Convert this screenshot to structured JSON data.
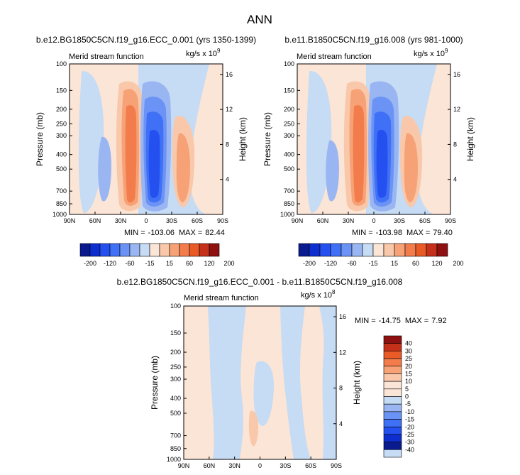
{
  "page_title": "ANN",
  "colors": {
    "neg": [
      "#0a1a8f",
      "#0d2fd0",
      "#2450f0",
      "#3f70f6",
      "#6a93f5",
      "#9ab6f2",
      "#c6dbf4"
    ],
    "pos": [
      "#fbe5d6",
      "#f9c8aa",
      "#f6a276",
      "#f27c4c",
      "#e85a26",
      "#c4301a",
      "#8f1010"
    ]
  },
  "chart_data": [
    {
      "type": "contour",
      "title": "b.e12.BG1850C5CN.f19_g16.ECC_0.001 (yrs 1350-1399)",
      "subtitle": "Merid stream function",
      "units_base": "kg/s x 10",
      "units_exp": "9",
      "ylabel": "Pressure (mb)",
      "y2label": "Height (km)",
      "x_ticks": [
        "90N",
        "60N",
        "30N",
        "0",
        "30S",
        "60S",
        "90S"
      ],
      "y_ticks": [
        100,
        150,
        200,
        250,
        300,
        400,
        500,
        700,
        850,
        1000
      ],
      "y2_ticks": [
        16,
        12,
        8,
        4
      ],
      "stats": {
        "min_label": "MIN =",
        "min": "-103.06",
        "max_label": "MAX =",
        "max": "82.44"
      },
      "colorbar": {
        "orientation": "horizontal",
        "labels": [
          "-200",
          "-120",
          "-60",
          "-15",
          "15",
          "60",
          "120",
          "200"
        ]
      }
    },
    {
      "type": "contour",
      "title": "b.e11.B1850C5CN.f19_g16.008 (yrs 981-1000)",
      "subtitle": "Merid stream function",
      "units_base": "kg/s x 10",
      "units_exp": "9",
      "ylabel": "Pressure (mb)",
      "y2label": "Height (km)",
      "x_ticks": [
        "90N",
        "60N",
        "30N",
        "0",
        "30S",
        "60S",
        "90S"
      ],
      "y_ticks": [
        100,
        150,
        200,
        250,
        300,
        400,
        500,
        700,
        850,
        1000
      ],
      "y2_ticks": [
        16,
        12,
        8,
        4
      ],
      "stats": {
        "min_label": "MIN =",
        "min": "-103.98",
        "max_label": "MAX =",
        "max": "79.40"
      },
      "colorbar": {
        "orientation": "horizontal",
        "labels": [
          "-200",
          "-120",
          "-60",
          "-15",
          "15",
          "60",
          "120",
          "200"
        ]
      }
    },
    {
      "type": "contour",
      "title": "b.e12.BG1850C5CN.f19_g16.ECC_0.001 - b.e11.B1850C5CN.f19_g16.008",
      "subtitle": "Merid stream function",
      "units_base": "kg/s x 10",
      "units_exp": "8",
      "ylabel": "Pressure (mb)",
      "y2label": "Height (km)",
      "x_ticks": [
        "90N",
        "60N",
        "30N",
        "0",
        "30S",
        "60S",
        "90S"
      ],
      "y_ticks": [
        100,
        150,
        200,
        250,
        300,
        400,
        500,
        700,
        850,
        1000
      ],
      "y2_ticks": [
        16,
        12,
        8,
        4
      ],
      "stats": {
        "min_label": "MIN =",
        "min": "-14.75",
        "max_label": "MAX =",
        "max": "7.92"
      },
      "colorbar": {
        "orientation": "vertical",
        "labels": [
          "40",
          "30",
          "25",
          "20",
          "15",
          "10",
          "5",
          "0",
          "-5",
          "-10",
          "-15",
          "-20",
          "-25",
          "-30",
          "-40"
        ]
      }
    }
  ]
}
